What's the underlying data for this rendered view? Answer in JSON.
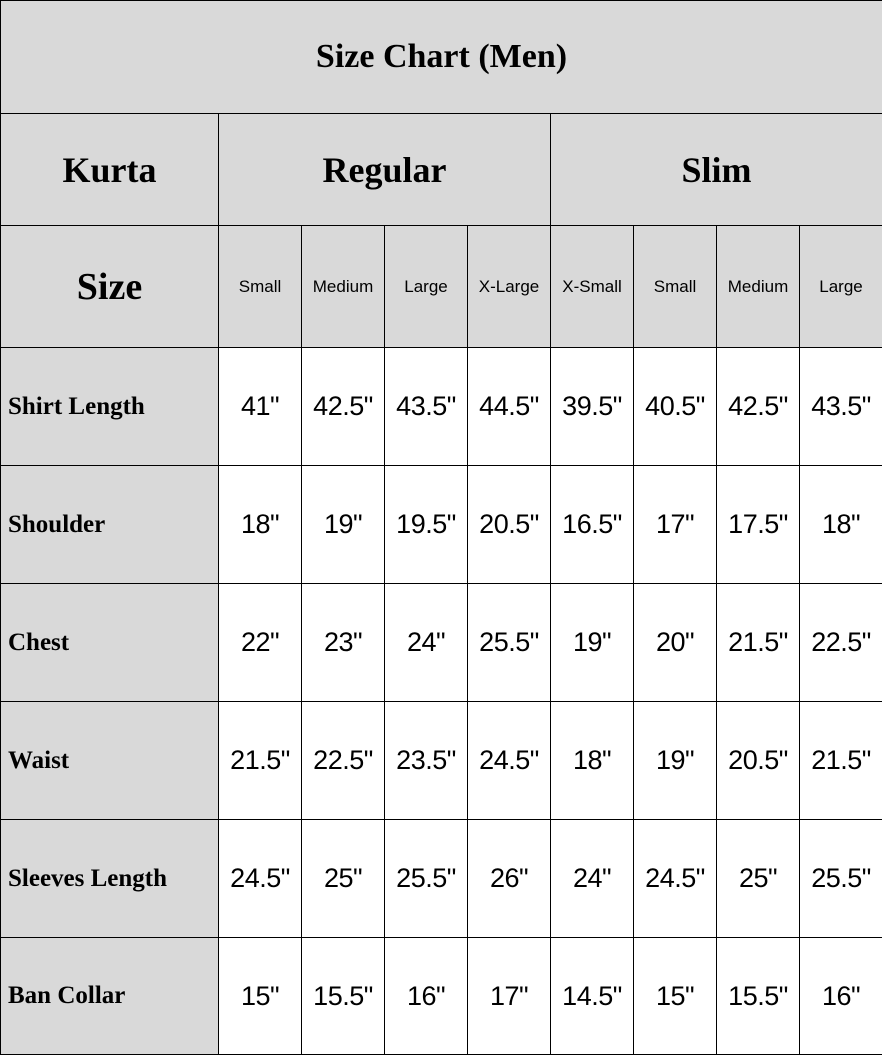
{
  "title": "Size Chart (Men)",
  "header": {
    "kurta_label": "Kurta",
    "groups": [
      "Regular",
      "Slim"
    ],
    "size_label": "Size",
    "sizes": [
      "Small",
      "Medium",
      "Large",
      "X-Large",
      "X-Small",
      "Small",
      "Medium",
      "Large"
    ]
  },
  "rows": [
    {
      "label": "Shirt Length",
      "values": [
        "41\"",
        "42.5\"",
        "43.5\"",
        "44.5\"",
        "39.5\"",
        "40.5\"",
        "42.5\"",
        "43.5\""
      ]
    },
    {
      "label": "Shoulder",
      "values": [
        "18\"",
        "19\"",
        "19.5\"",
        "20.5\"",
        "16.5\"",
        "17\"",
        "17.5\"",
        "18\""
      ]
    },
    {
      "label": "Chest",
      "values": [
        "22\"",
        "23\"",
        "24\"",
        "25.5\"",
        "19\"",
        "20\"",
        "21.5\"",
        "22.5\""
      ]
    },
    {
      "label": "Waist",
      "values": [
        "21.5\"",
        "22.5\"",
        "23.5\"",
        "24.5\"",
        "18\"",
        "19\"",
        "20.5\"",
        "21.5\""
      ]
    },
    {
      "label": "Sleeves Length",
      "values": [
        "24.5\"",
        "25\"",
        "25.5\"",
        "26\"",
        "24\"",
        "24.5\"",
        "25\"",
        "25.5\""
      ]
    },
    {
      "label": "Ban Collar",
      "values": [
        "15\"",
        "15.5\"",
        "16\"",
        "17\"",
        "14.5\"",
        "15\"",
        "15.5\"",
        "16\""
      ]
    }
  ],
  "colors": {
    "header_fill": "#d9d9d9",
    "cell_fill": "#ffffff",
    "border": "#000000"
  }
}
